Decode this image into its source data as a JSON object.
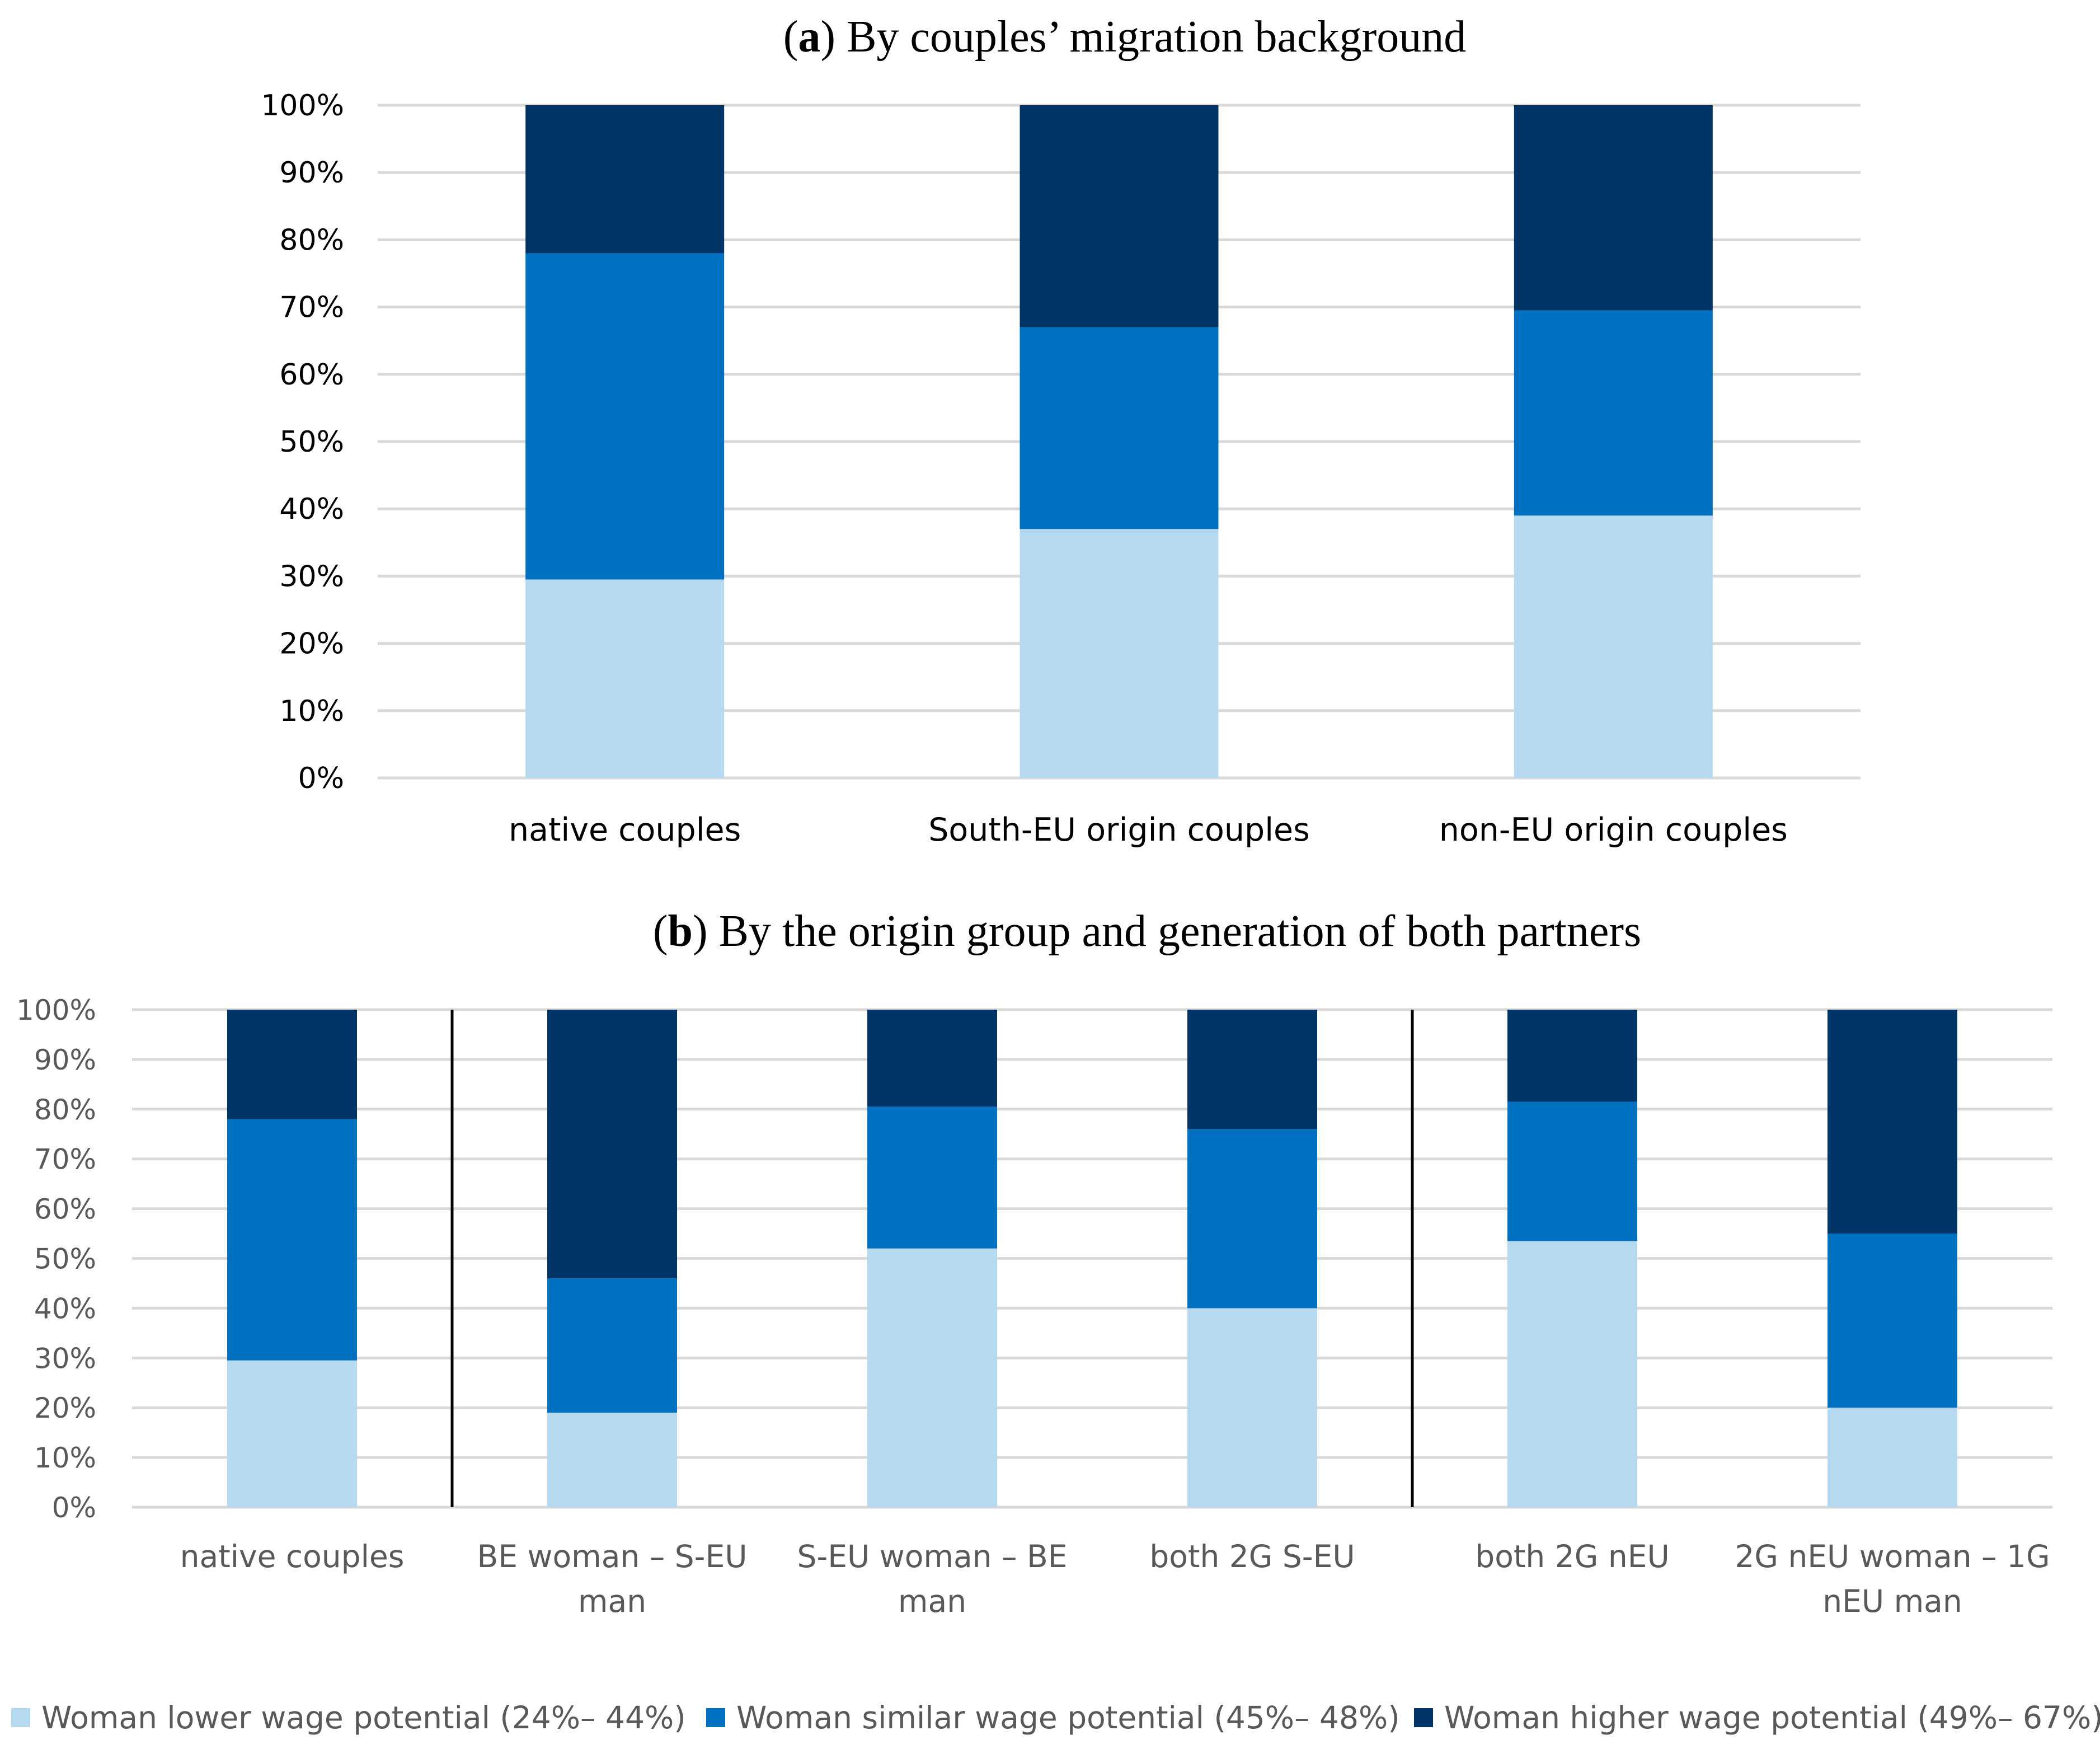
{
  "colors": {
    "lower": "#b4d9f0",
    "similar": "#0070c0",
    "higher": "#003366",
    "grid": "#d9d9d9",
    "divider": "#000000"
  },
  "legend": [
    {
      "key": "lower",
      "label": "Woman lower wage potential (24%– 44%)"
    },
    {
      "key": "similar",
      "label": "Woman similar wage potential (45%– 48%)"
    },
    {
      "key": "higher",
      "label": "Woman higher wage potential (49%– 67%)"
    }
  ],
  "chart_data": [
    {
      "type": "bar",
      "stacked": true,
      "title_prefix": "(",
      "title_letter": "a",
      "title_rest": ") By couples’ migration background",
      "categories": [
        "native couples",
        "South-EU origin couples",
        "non-EU origin couples"
      ],
      "category_lines": [
        [
          "native couples"
        ],
        [
          "South-EU origin couples"
        ],
        [
          "non-EU origin couples"
        ]
      ],
      "series": [
        {
          "name": "Woman lower wage potential (24%– 44%)",
          "key": "lower",
          "values": [
            29.5,
            37,
            39
          ]
        },
        {
          "name": "Woman similar wage potential (45%– 48%)",
          "key": "similar",
          "values": [
            48.5,
            30,
            30.5
          ]
        },
        {
          "name": "Woman higher wage potential (49%– 67%)",
          "key": "higher",
          "values": [
            22,
            33,
            30.5
          ]
        }
      ],
      "y_ticks": [
        "0%",
        "10%",
        "20%",
        "30%",
        "40%",
        "50%",
        "60%",
        "70%",
        "80%",
        "90%",
        "100%"
      ],
      "ylim": [
        0,
        100
      ],
      "grid": true,
      "legend_position": "bottom"
    },
    {
      "type": "bar",
      "stacked": true,
      "title_prefix": "(",
      "title_letter": "b",
      "title_rest": ") By the origin group and generation of both partners",
      "categories": [
        "native couples",
        "BE woman – S-EU man",
        "S-EU woman – BE man",
        "both 2G S-EU",
        "both 2G nEU",
        "2G nEU woman – 1G nEU man"
      ],
      "category_lines": [
        [
          "native couples"
        ],
        [
          "BE woman – S-EU",
          "man"
        ],
        [
          "S-EU woman – BE",
          "man"
        ],
        [
          "both 2G S-EU"
        ],
        [
          "both 2G nEU"
        ],
        [
          "2G nEU woman – 1G",
          "nEU man"
        ]
      ],
      "series": [
        {
          "name": "Woman lower wage potential (24%– 44%)",
          "key": "lower",
          "values": [
            29.5,
            19,
            52,
            40,
            53.5,
            20
          ]
        },
        {
          "name": "Woman similar wage potential (45%– 48%)",
          "key": "similar",
          "values": [
            48.5,
            27,
            28.5,
            36,
            28,
            35
          ]
        },
        {
          "name": "Woman higher wage potential (49%– 67%)",
          "key": "higher",
          "values": [
            22,
            54,
            19.5,
            24,
            18.5,
            45
          ]
        }
      ],
      "group_dividers_after": [
        0,
        3
      ],
      "y_ticks": [
        "0%",
        "10%",
        "20%",
        "30%",
        "40%",
        "50%",
        "60%",
        "70%",
        "80%",
        "90%",
        "100%"
      ],
      "ylim": [
        0,
        100
      ],
      "grid": true,
      "legend_position": "bottom"
    }
  ]
}
